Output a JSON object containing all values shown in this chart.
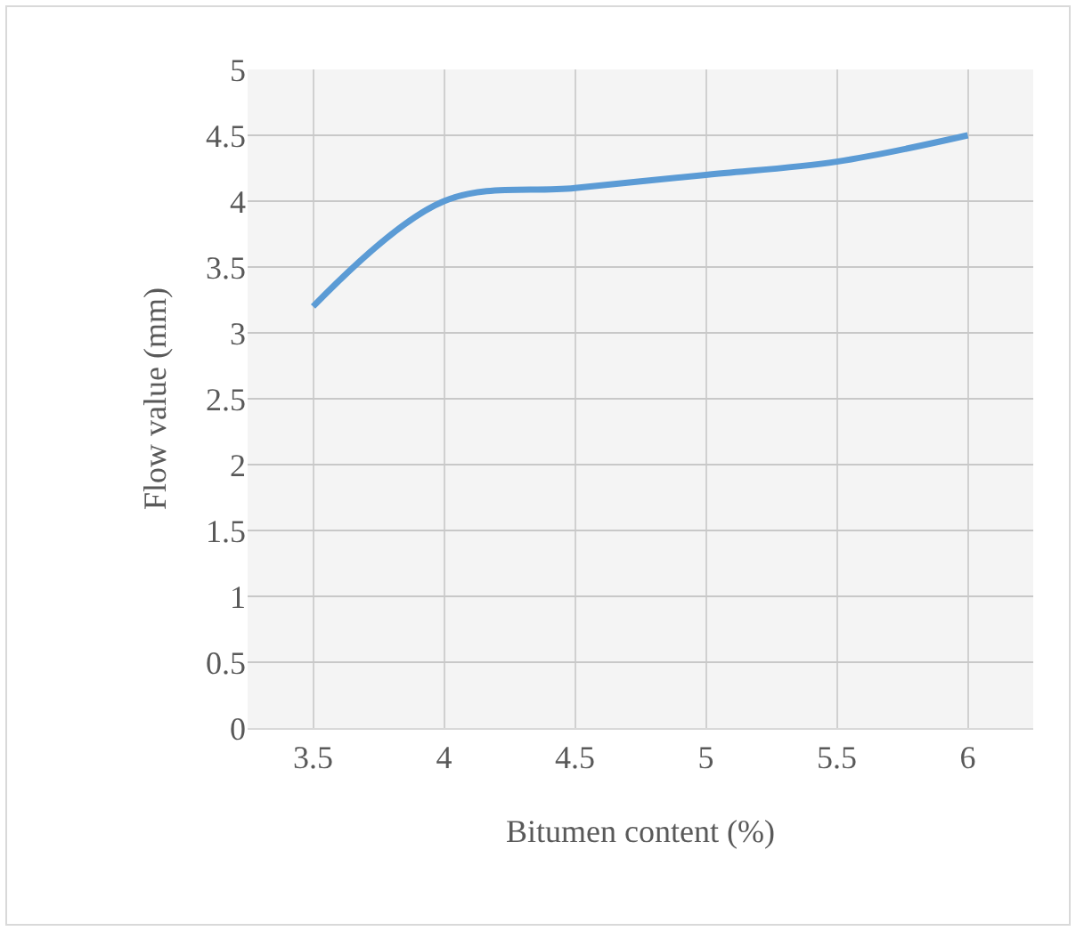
{
  "chart_data": {
    "type": "line",
    "xlabel": "Bitumen content (%)",
    "ylabel": "Flow value (mm)",
    "categories": [
      "3.5",
      "4",
      "4.5",
      "5",
      "5.5",
      "6"
    ],
    "series": [
      {
        "color": "#5b9bd5",
        "values": [
          3.2,
          4.0,
          4.1,
          4.2,
          4.3,
          4.5
        ]
      }
    ],
    "ylim": [
      0,
      5
    ],
    "yticks": [
      0,
      0.5,
      1,
      1.5,
      2,
      2.5,
      3,
      3.5,
      4,
      4.5,
      5
    ],
    "grid": true,
    "legend": false,
    "marker": "none",
    "line_style": "solid"
  }
}
